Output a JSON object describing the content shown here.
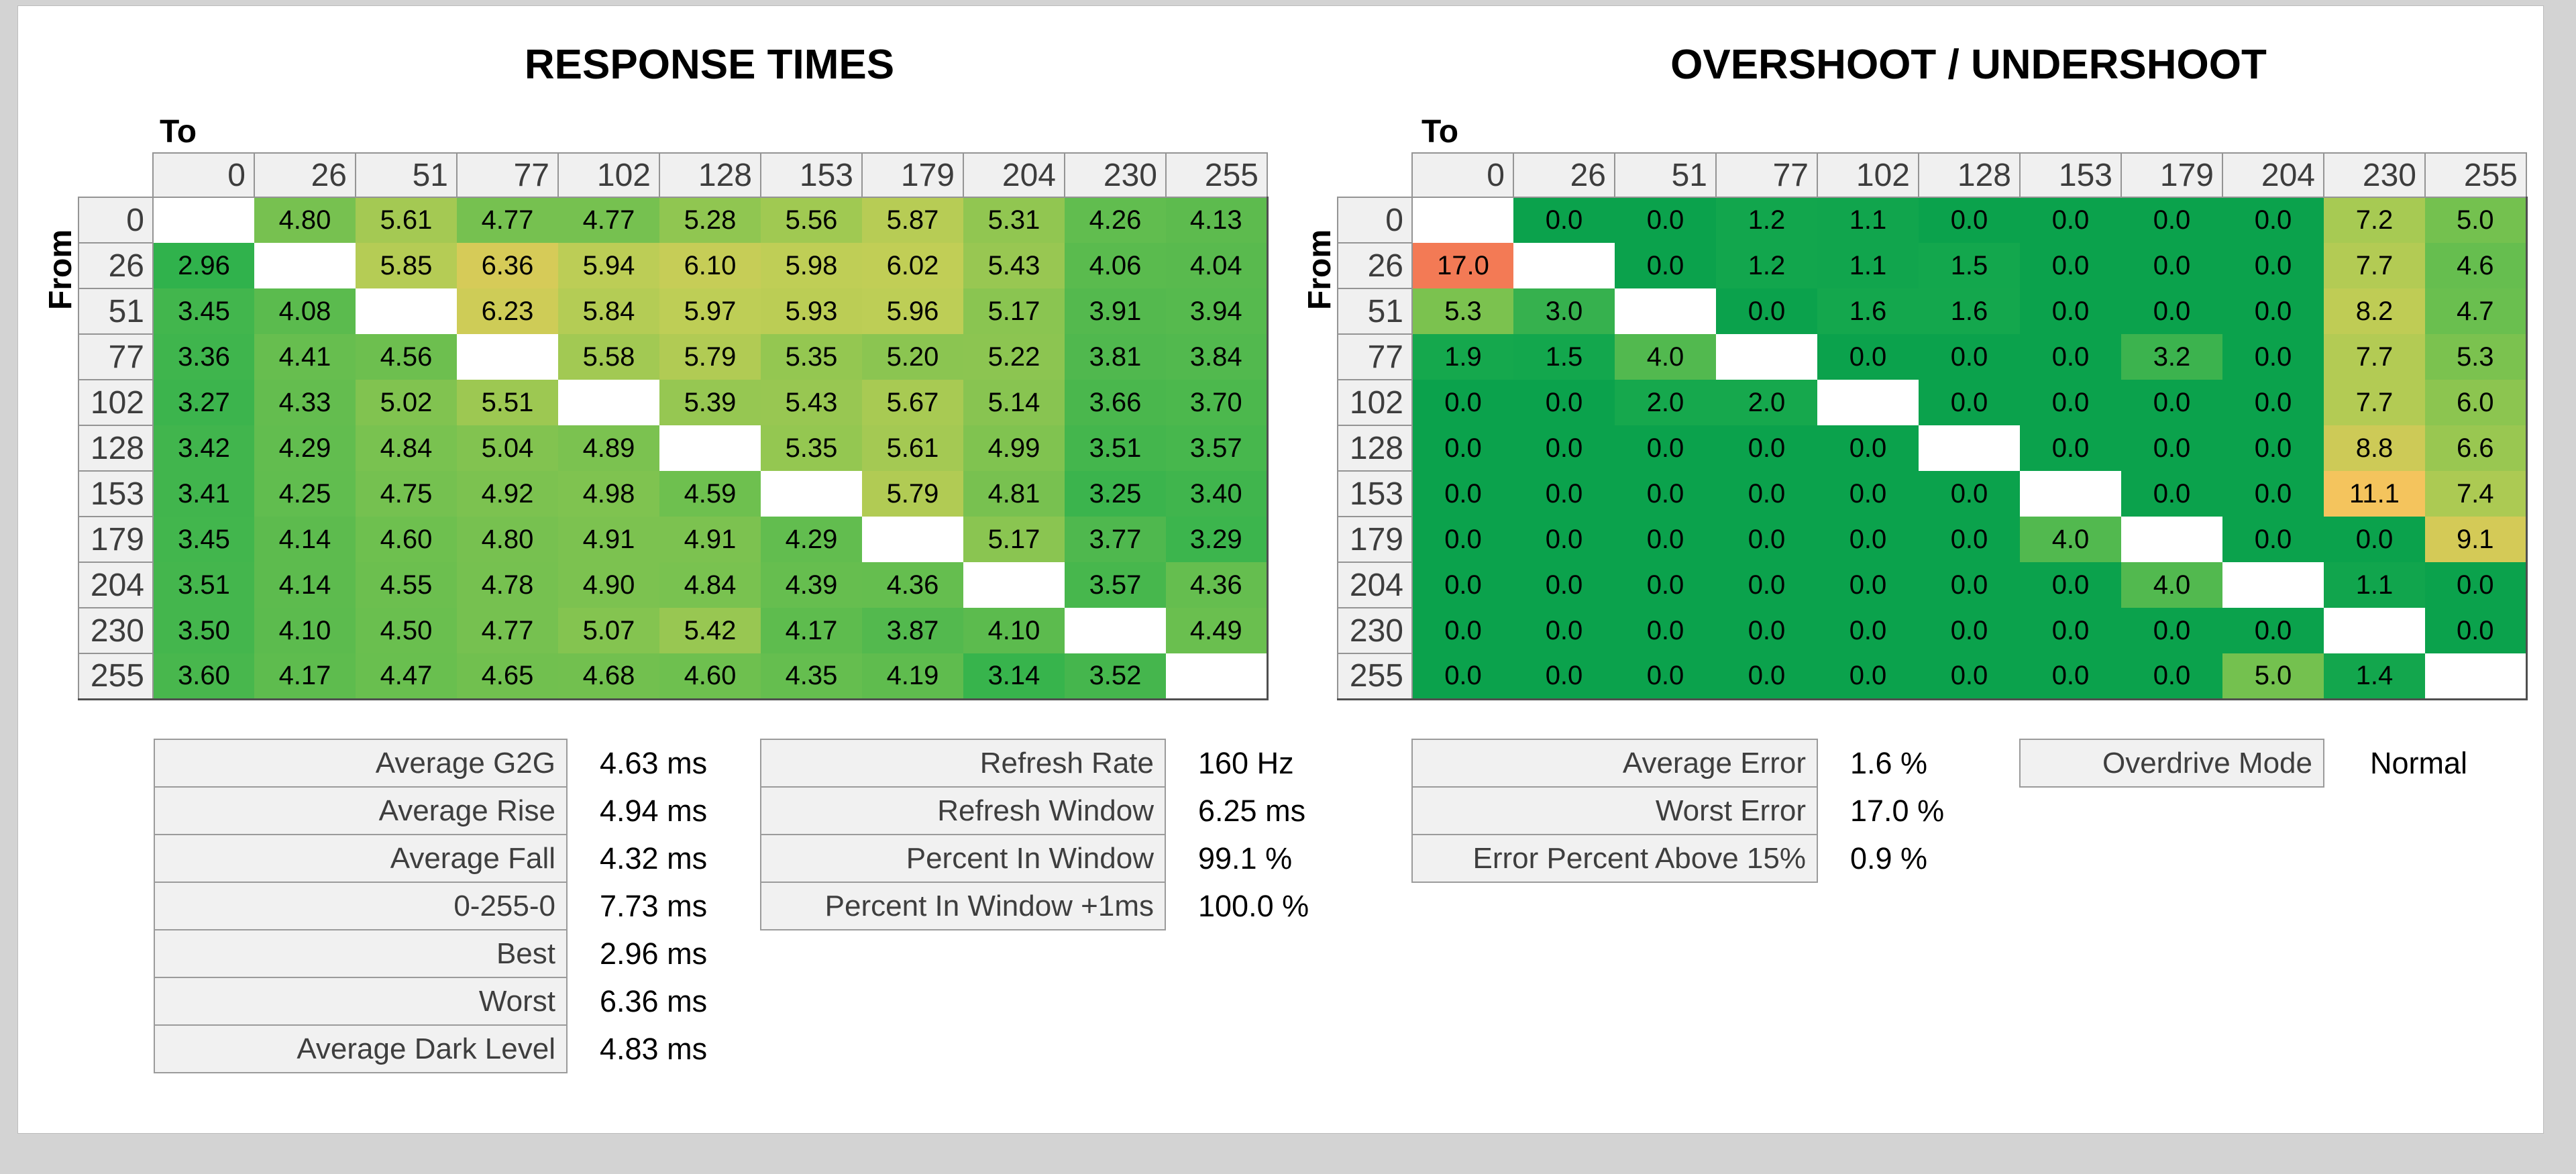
{
  "chart_data": [
    {
      "id": "response-times",
      "type": "heatmap",
      "title": "RESPONSE TIMES",
      "unit": "ms",
      "decimals": 2,
      "x_label": "To",
      "y_label": "From",
      "levels": [
        0,
        26,
        51,
        77,
        102,
        128,
        153,
        179,
        204,
        230,
        255
      ],
      "rows": [
        [
          null,
          4.8,
          5.61,
          4.77,
          4.77,
          5.28,
          5.56,
          5.87,
          5.31,
          4.26,
          4.13
        ],
        [
          2.96,
          null,
          5.85,
          6.36,
          5.94,
          6.1,
          5.98,
          6.02,
          5.43,
          4.06,
          4.04
        ],
        [
          3.45,
          4.08,
          null,
          6.23,
          5.84,
          5.97,
          5.93,
          5.96,
          5.17,
          3.91,
          3.94
        ],
        [
          3.36,
          4.41,
          4.56,
          null,
          5.58,
          5.79,
          5.35,
          5.2,
          5.22,
          3.81,
          3.84
        ],
        [
          3.27,
          4.33,
          5.02,
          5.51,
          null,
          5.39,
          5.43,
          5.67,
          5.14,
          3.66,
          3.7
        ],
        [
          3.42,
          4.29,
          4.84,
          5.04,
          4.89,
          null,
          5.35,
          5.61,
          4.99,
          3.51,
          3.57
        ],
        [
          3.41,
          4.25,
          4.75,
          4.92,
          4.98,
          4.59,
          null,
          5.79,
          4.81,
          3.25,
          3.4
        ],
        [
          3.45,
          4.14,
          4.6,
          4.8,
          4.91,
          4.91,
          4.29,
          null,
          5.17,
          3.77,
          3.29
        ],
        [
          3.51,
          4.14,
          4.55,
          4.78,
          4.9,
          4.84,
          4.39,
          4.36,
          null,
          3.57,
          4.36
        ],
        [
          3.5,
          4.1,
          4.5,
          4.77,
          5.07,
          5.42,
          4.17,
          3.87,
          4.1,
          null,
          4.49
        ],
        [
          3.6,
          4.17,
          4.47,
          4.65,
          4.68,
          4.6,
          4.35,
          4.19,
          3.14,
          3.52,
          null
        ]
      ],
      "colormap": [
        [
          2.9,
          "#2eb24c"
        ],
        [
          3.5,
          "#44b64d"
        ],
        [
          4.0,
          "#58ba4e"
        ],
        [
          4.5,
          "#6abf4f"
        ],
        [
          5.0,
          "#80c350"
        ],
        [
          5.5,
          "#9cc852"
        ],
        [
          6.0,
          "#c0ce56"
        ],
        [
          6.4,
          "#d8cb58"
        ]
      ]
    },
    {
      "id": "overshoot-undershoot",
      "type": "heatmap",
      "title": "OVERSHOOT / UNDERSHOOT",
      "unit": "%",
      "decimals": 1,
      "x_label": "To",
      "y_label": "From",
      "levels": [
        0,
        26,
        51,
        77,
        102,
        128,
        153,
        179,
        204,
        230,
        255
      ],
      "rows": [
        [
          null,
          0.0,
          0.0,
          1.2,
          1.1,
          0.0,
          0.0,
          0.0,
          0.0,
          7.2,
          5.0
        ],
        [
          17.0,
          null,
          0.0,
          1.2,
          1.1,
          1.5,
          0.0,
          0.0,
          0.0,
          7.7,
          4.6
        ],
        [
          5.3,
          3.0,
          null,
          0.0,
          1.6,
          1.6,
          0.0,
          0.0,
          0.0,
          8.2,
          4.7
        ],
        [
          1.9,
          1.5,
          4.0,
          null,
          0.0,
          0.0,
          0.0,
          3.2,
          0.0,
          7.7,
          5.3
        ],
        [
          0.0,
          0.0,
          2.0,
          2.0,
          null,
          0.0,
          0.0,
          0.0,
          0.0,
          7.7,
          6.0
        ],
        [
          0.0,
          0.0,
          0.0,
          0.0,
          0.0,
          null,
          0.0,
          0.0,
          0.0,
          8.8,
          6.6
        ],
        [
          0.0,
          0.0,
          0.0,
          0.0,
          0.0,
          0.0,
          null,
          0.0,
          0.0,
          11.1,
          7.4
        ],
        [
          0.0,
          0.0,
          0.0,
          0.0,
          0.0,
          0.0,
          4.0,
          null,
          0.0,
          0.0,
          9.1
        ],
        [
          0.0,
          0.0,
          0.0,
          0.0,
          0.0,
          0.0,
          0.0,
          4.0,
          null,
          1.1,
          0.0
        ],
        [
          0.0,
          0.0,
          0.0,
          0.0,
          0.0,
          0.0,
          0.0,
          0.0,
          0.0,
          null,
          0.0
        ],
        [
          0.0,
          0.0,
          0.0,
          0.0,
          0.0,
          0.0,
          0.0,
          0.0,
          5.0,
          1.4,
          null
        ]
      ],
      "colormap": [
        [
          0,
          "#0ba24c"
        ],
        [
          2,
          "#16a84d"
        ],
        [
          3,
          "#36b14e"
        ],
        [
          4,
          "#52b94f"
        ],
        [
          5,
          "#74c14f"
        ],
        [
          6,
          "#8cc550"
        ],
        [
          7,
          "#a2c952"
        ],
        [
          8,
          "#bacc55"
        ],
        [
          9,
          "#d2ca57"
        ],
        [
          10,
          "#e6c95a"
        ],
        [
          11.5,
          "#f9c25e"
        ],
        [
          14,
          "#f79d58"
        ],
        [
          17,
          "#f37a55"
        ]
      ]
    }
  ],
  "summaries": [
    {
      "id": "response-summary",
      "label_width": 617,
      "rows": [
        {
          "label": "Average G2G",
          "value": "4.63 ms"
        },
        {
          "label": "Average Rise",
          "value": "4.94 ms"
        },
        {
          "label": "Average Fall",
          "value": "4.32 ms"
        },
        {
          "label": "0-255-0",
          "value": "7.73 ms"
        },
        {
          "label": "Best",
          "value": "2.96 ms"
        },
        {
          "label": "Worst",
          "value": "6.36 ms"
        },
        {
          "label": "Average Dark Level",
          "value": "4.83 ms"
        }
      ]
    },
    {
      "id": "refresh-summary",
      "label_width": 605,
      "rows": [
        {
          "label": "Refresh Rate",
          "value": "160 Hz"
        },
        {
          "label": "Refresh Window",
          "value": "6.25 ms"
        },
        {
          "label": "Percent In Window",
          "value": "99.1 %"
        },
        {
          "label": "Percent In Window +1ms",
          "value": "100.0 %"
        }
      ]
    },
    {
      "id": "error-summary",
      "label_width": 606,
      "rows": [
        {
          "label": "Average Error",
          "value": "1.6 %"
        },
        {
          "label": "Worst Error",
          "value": "17.0 %"
        },
        {
          "label": "Error Percent Above 15%",
          "value": "0.9 %"
        }
      ]
    },
    {
      "id": "overdrive-summary",
      "label_width": 455,
      "rows": [
        {
          "label": "Overdrive Mode",
          "value": "Normal"
        }
      ]
    }
  ],
  "colors": {
    "page_background": "#d3d3d3",
    "panel_background": "#ffffff",
    "header_cell_background": "#f0f0f0",
    "header_cell_border": "#949494",
    "diagonal_cell": "#ffffff",
    "stats_label_background": "#f1f1f1",
    "stats_label_border": "#9b9b9b",
    "label_text": "#3e3e3e",
    "value_text": "#000000",
    "heatmap_green": "#0ba24c",
    "heatmap_yellow": "#d2ca57",
    "heatmap_orange": "#f9c25e",
    "heatmap_red": "#f37a55"
  }
}
